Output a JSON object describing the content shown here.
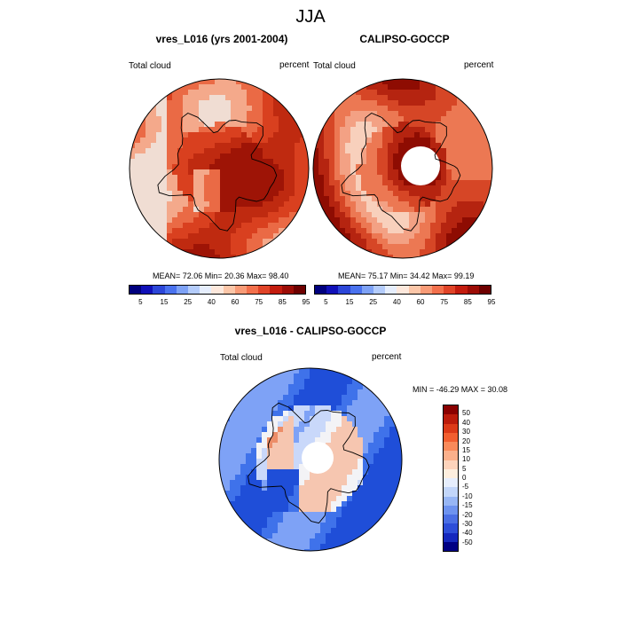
{
  "title": "JJA",
  "panels": {
    "model": {
      "title": "vres_L016 (yrs 2001-2004)",
      "left_label": "Total cloud",
      "right_label": "percent",
      "stats": "MEAN=  72.06  Min=  20.36  Max=  98.40"
    },
    "obs": {
      "title": "CALIPSO-GOCCP",
      "left_label": "Total cloud",
      "right_label": "percent",
      "stats": "MEAN=  75.17  Min=  34.42  Max=  99.19"
    },
    "diff": {
      "title": "vres_L016 - CALIPSO-GOCCP",
      "left_label": "Total cloud",
      "right_label": "percent",
      "stats": "MIN = -46.29 MAX =  30.08"
    }
  },
  "colorbar_abs": {
    "colors": [
      "#00007e",
      "#1010b8",
      "#2c46d8",
      "#4a72ee",
      "#7ea2f6",
      "#b4ccfb",
      "#e6eefd",
      "#fde8dc",
      "#fbc6a8",
      "#f89b77",
      "#f2704c",
      "#e04428",
      "#c31c0e",
      "#9c0c06",
      "#6e0000"
    ],
    "labels": [
      "5",
      "15",
      "25",
      "40",
      "60",
      "75",
      "85",
      "95"
    ]
  },
  "colorbar_diff": {
    "colors": [
      "#8a0000",
      "#bb1b0b",
      "#dc3a18",
      "#f25f30",
      "#f98a5a",
      "#fbb08b",
      "#fdd3bb",
      "#fdeede",
      "#e6eefd",
      "#c2d6fa",
      "#97b6f5",
      "#6e93ef",
      "#4b6fe4",
      "#2e4ed8",
      "#1528bd",
      "#000083"
    ],
    "labels": [
      "50",
      "40",
      "30",
      "20",
      "15",
      "10",
      "5",
      "0",
      "-5",
      "-10",
      "-15",
      "-20",
      "-30",
      "-40",
      "-50"
    ]
  },
  "map_palettes": {
    "model": [
      "#f0ddd3",
      "#f4a98b",
      "#ea6a45",
      "#d9401f",
      "#bf2a10",
      "#9e1406"
    ],
    "obs": [
      "#f8d0bc",
      "#f3a184",
      "#ec7853",
      "#d64626",
      "#b52410",
      "#8e0c02"
    ],
    "diff": [
      "#1f4ed8",
      "#3f72ea",
      "#7ea2f6",
      "#c9d8fa",
      "#f3f3f6",
      "#f6c6b0",
      "#ec8d68",
      "#d9502c"
    ]
  }
}
